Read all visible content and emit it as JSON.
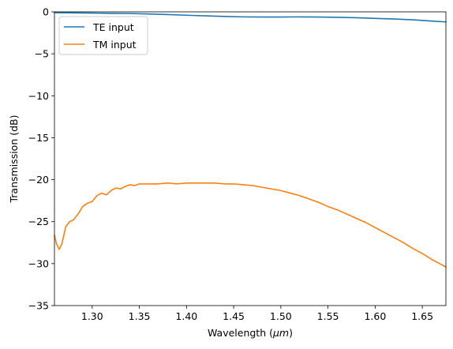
{
  "chart_data": {
    "type": "line",
    "title": "",
    "xlabel": "Wavelength (",
    "xlabel_unit": "μm",
    "xlabel_close": ")",
    "ylabel": "Transmission (dB)",
    "xlim": [
      1.26,
      1.675
    ],
    "ylim": [
      -35,
      0
    ],
    "xticks": [
      1.3,
      1.35,
      1.4,
      1.45,
      1.5,
      1.55,
      1.6,
      1.65
    ],
    "xtick_labels": [
      "1.30",
      "1.35",
      "1.40",
      "1.45",
      "1.50",
      "1.55",
      "1.60",
      "1.65"
    ],
    "yticks": [
      0,
      -5,
      -10,
      -15,
      -20,
      -25,
      -30,
      -35
    ],
    "ytick_labels": [
      "0",
      "−5",
      "−10",
      "−15",
      "−20",
      "−25",
      "−30",
      "−35"
    ],
    "grid": false,
    "legend_position": "top-left",
    "series": [
      {
        "name": "TE input",
        "color": "#1f77b4",
        "x": [
          1.26,
          1.28,
          1.3,
          1.32,
          1.34,
          1.36,
          1.38,
          1.4,
          1.42,
          1.44,
          1.46,
          1.48,
          1.5,
          1.52,
          1.54,
          1.56,
          1.58,
          1.6,
          1.62,
          1.64,
          1.66,
          1.675
        ],
        "y": [
          -0.1,
          -0.12,
          -0.15,
          -0.18,
          -0.2,
          -0.25,
          -0.32,
          -0.4,
          -0.48,
          -0.55,
          -0.6,
          -0.62,
          -0.62,
          -0.6,
          -0.62,
          -0.65,
          -0.7,
          -0.78,
          -0.85,
          -0.95,
          -1.1,
          -1.2
        ]
      },
      {
        "name": "TM input",
        "color": "#ff7f0e",
        "x": [
          1.26,
          1.262,
          1.265,
          1.268,
          1.272,
          1.276,
          1.28,
          1.285,
          1.29,
          1.295,
          1.3,
          1.305,
          1.31,
          1.315,
          1.32,
          1.325,
          1.33,
          1.335,
          1.34,
          1.345,
          1.35,
          1.36,
          1.37,
          1.38,
          1.39,
          1.4,
          1.41,
          1.42,
          1.43,
          1.44,
          1.45,
          1.46,
          1.47,
          1.48,
          1.49,
          1.5,
          1.51,
          1.52,
          1.53,
          1.54,
          1.55,
          1.56,
          1.57,
          1.58,
          1.59,
          1.6,
          1.61,
          1.62,
          1.63,
          1.64,
          1.65,
          1.66,
          1.67,
          1.675
        ],
        "y": [
          -26.6,
          -27.6,
          -28.3,
          -27.6,
          -25.6,
          -25.0,
          -24.8,
          -24.1,
          -23.2,
          -22.8,
          -22.6,
          -21.9,
          -21.6,
          -21.8,
          -21.3,
          -21.0,
          -21.1,
          -20.8,
          -20.6,
          -20.7,
          -20.5,
          -20.5,
          -20.5,
          -20.4,
          -20.5,
          -20.4,
          -20.4,
          -20.4,
          -20.4,
          -20.5,
          -20.5,
          -20.6,
          -20.7,
          -20.9,
          -21.1,
          -21.3,
          -21.6,
          -21.9,
          -22.3,
          -22.7,
          -23.2,
          -23.6,
          -24.1,
          -24.6,
          -25.1,
          -25.7,
          -26.3,
          -26.9,
          -27.5,
          -28.2,
          -28.8,
          -29.5,
          -30.1,
          -30.4
        ]
      }
    ]
  }
}
